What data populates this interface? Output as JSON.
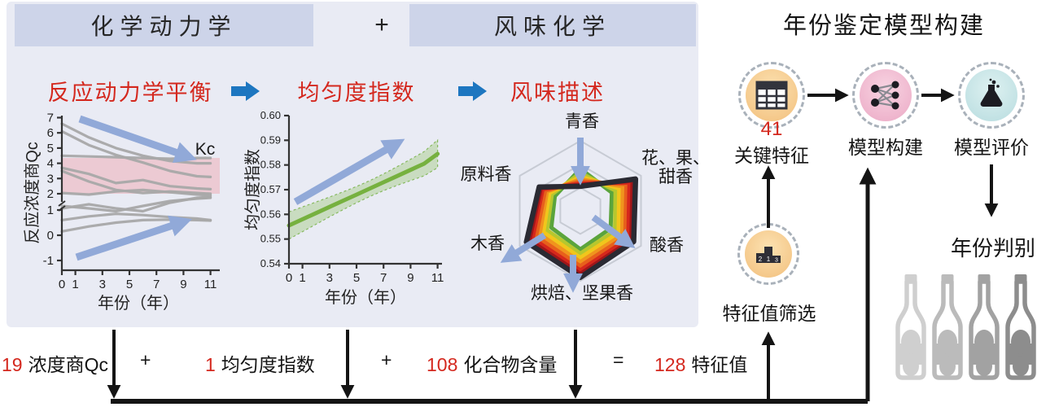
{
  "panel": {
    "header_left": "化学动力学",
    "plus": "+",
    "header_right": "风味化学",
    "steps": [
      "反应动力学平衡",
      "均匀度指数",
      "风味描述"
    ]
  },
  "chart_data": [
    {
      "type": "line",
      "title": "反应动力学平衡",
      "ylabel": "反应浓度商Qc",
      "xlabel": "年份（年）",
      "xticks": [
        0,
        1,
        3,
        5,
        7,
        9,
        11
      ],
      "yticks": [
        -1,
        0,
        1,
        2,
        3,
        4,
        5,
        6,
        7
      ],
      "axis_break_between": [
        1,
        2
      ],
      "kc_label": "Kc",
      "kc_band": [
        2.0,
        4.35
      ],
      "x_years": [
        0,
        2,
        4,
        6,
        8,
        10,
        11
      ],
      "series": [
        {
          "values": [
            6.6,
            5.7,
            5.0,
            4.5,
            4.15,
            4.0,
            4.0
          ]
        },
        {
          "values": [
            6.1,
            5.2,
            4.55,
            4.05,
            3.5,
            3.15,
            3.1
          ]
        },
        {
          "values": [
            4.5,
            4.45,
            4.4,
            4.35,
            4.3,
            4.35,
            4.35
          ]
        },
        {
          "values": [
            3.7,
            3.3,
            2.7,
            2.9,
            2.5,
            2.35,
            2.3
          ]
        },
        {
          "values": [
            3.5,
            2.8,
            2.25,
            2.05,
            2.15,
            2.05,
            2.0
          ]
        },
        {
          "values": [
            2.05,
            1.95,
            2.15,
            2.25,
            2.1,
            1.95,
            1.9
          ]
        },
        {
          "values": [
            1.25,
            1.1,
            0.95,
            1.25,
            1.55,
            1.7,
            1.75
          ]
        },
        {
          "values": [
            1.1,
            1.35,
            1.1,
            0.95,
            1.45,
            1.75,
            1.8
          ]
        },
        {
          "values": [
            0.6,
            0.75,
            0.85,
            0.8,
            0.72,
            0.66,
            0.6
          ]
        },
        {
          "values": [
            0.15,
            0.35,
            0.5,
            0.6,
            0.62,
            0.6,
            0.58
          ]
        }
      ],
      "line_color": "#a8a8a8",
      "band_color": "#eeb9c2",
      "arrow_color": "#91a9d8"
    },
    {
      "type": "line",
      "title": "均匀度指数",
      "ylabel": "均匀度指数",
      "xlabel": "年份（年）",
      "xticks": [
        0,
        1,
        3,
        5,
        7,
        9,
        11
      ],
      "ylim": [
        0.54,
        0.6
      ],
      "ytick_step": 0.01,
      "x_years": [
        0,
        1,
        2,
        3,
        4,
        5,
        6,
        7,
        8,
        9,
        10,
        11
      ],
      "mean": [
        0.5555,
        0.558,
        0.5605,
        0.563,
        0.5655,
        0.568,
        0.5705,
        0.573,
        0.5755,
        0.578,
        0.5805,
        0.5845
      ],
      "band_halfwidth": [
        0.0055,
        0.005,
        0.0045,
        0.004,
        0.0036,
        0.0033,
        0.0032,
        0.0034,
        0.0038,
        0.0043,
        0.0049,
        0.0056
      ],
      "line_color": "#76b13f",
      "band_color": "rgba(150,196,108,0.38)",
      "arrow_color": "#91a9d8"
    },
    {
      "type": "radar",
      "title": "风味描述",
      "axis_labels": [
        "青香",
        "花、果、甜香",
        "酸香",
        "烘焙、坚果香",
        "木香",
        "原料香"
      ],
      "grid_levels": [
        1,
        0.66,
        0.33
      ],
      "rings": [
        {
          "color": "#5ba43c",
          "values": [
            0.6,
            0.52,
            0.5,
            0.55,
            0.48,
            0.42
          ]
        },
        {
          "color": "#b6c72e",
          "values": [
            0.54,
            0.58,
            0.57,
            0.61,
            0.55,
            0.47
          ]
        },
        {
          "color": "#f1c61c",
          "values": [
            0.49,
            0.64,
            0.63,
            0.67,
            0.61,
            0.51
          ]
        },
        {
          "color": "#f0941e",
          "values": [
            0.45,
            0.7,
            0.69,
            0.73,
            0.67,
            0.55
          ]
        },
        {
          "color": "#e7601c",
          "values": [
            0.42,
            0.76,
            0.74,
            0.79,
            0.73,
            0.58
          ]
        },
        {
          "color": "#d6281c",
          "values": [
            0.39,
            0.81,
            0.79,
            0.85,
            0.79,
            0.62
          ]
        },
        {
          "color": "#a0161a",
          "values": [
            0.37,
            0.86,
            0.84,
            0.9,
            0.84,
            0.65
          ]
        },
        {
          "color": "#2a2a33",
          "values": [
            0.35,
            0.91,
            0.88,
            0.95,
            0.89,
            0.68
          ]
        }
      ],
      "arrow_color": "#91a9d8"
    }
  ],
  "model": {
    "title": "年份鉴定模型构建",
    "feature_count": "41",
    "feature_label": "关键特征",
    "build_label": "模型构建",
    "eval_label": "模型评价",
    "screening_label": "特征值筛选",
    "podium": [
      "2",
      "1",
      "3"
    ],
    "result_label": "年份判别",
    "bottle_colors": [
      "#cfcfcf",
      "#bbbbbb",
      "#a2a2a2",
      "#8d8d8d"
    ]
  },
  "equation": {
    "t1_num": "19",
    "t1_label": "浓度商Qc",
    "plus": "+",
    "t2_num": "1",
    "t2_label": "均匀度指数",
    "t3_num": "108",
    "t3_label": "化合物含量",
    "equals": "=",
    "t4_num": "128",
    "t4_label": "特征值",
    "accent_color": "#d4281e"
  }
}
